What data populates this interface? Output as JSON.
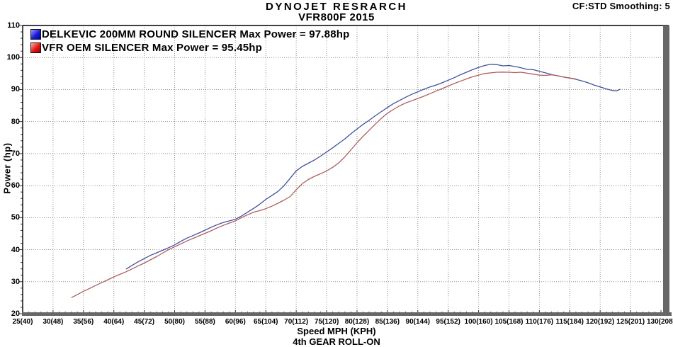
{
  "header": {
    "title": "DYNOJET RESRARCH",
    "subtitle": "VFR800F 2015",
    "smoothing_info": "CF:STD Smoothing: 5"
  },
  "chart_data": {
    "type": "line",
    "title": "DYNOJET RESRARCH",
    "subtitle": "VFR800F 2015",
    "xlabel": "Speed MPH (KPH)",
    "xlabel_secondary": "4th GEAR ROLL-ON",
    "ylabel": "Power (hp)",
    "xlim": [
      25,
      130
    ],
    "ylim": [
      20,
      110
    ],
    "grid": "dotted",
    "grid_color": "#8f8f8f",
    "axis_color": "#000000",
    "axis_shadow_color": "#676767",
    "legend_position": "top-left",
    "x_ticks": [
      {
        "v": 25,
        "label": "25(40)"
      },
      {
        "v": 30,
        "label": "30(48)"
      },
      {
        "v": 35,
        "label": "35(56)"
      },
      {
        "v": 40,
        "label": "40(64)"
      },
      {
        "v": 45,
        "label": "45(72)"
      },
      {
        "v": 50,
        "label": "50(80)"
      },
      {
        "v": 55,
        "label": "55(88)"
      },
      {
        "v": 60,
        "label": "60(96)"
      },
      {
        "v": 65,
        "label": "65(104)"
      },
      {
        "v": 70,
        "label": "70(112)"
      },
      {
        "v": 75,
        "label": "75(120)"
      },
      {
        "v": 80,
        "label": "80(128)"
      },
      {
        "v": 85,
        "label": "85(136)"
      },
      {
        "v": 90,
        "label": "90(144)"
      },
      {
        "v": 95,
        "label": "95(152)"
      },
      {
        "v": 100,
        "label": "100(160)"
      },
      {
        "v": 105,
        "label": "105(168)"
      },
      {
        "v": 110,
        "label": "110(176)"
      },
      {
        "v": 115,
        "label": "115(184)"
      },
      {
        "v": 120,
        "label": "120(192)"
      },
      {
        "v": 125,
        "label": "125(201)"
      },
      {
        "v": 130,
        "label": "130(208)"
      }
    ],
    "y_ticks": [
      20,
      30,
      40,
      50,
      60,
      70,
      80,
      90,
      100,
      110
    ],
    "series": [
      {
        "name": "DELKEVIC 200MM ROUND SILENCER",
        "legend_label": "DELKEVIC 200MM ROUND SILENCER Max Power = 97.88hp",
        "max_power_hp": 97.88,
        "line_color": "#41519e",
        "swatch_gradient": [
          "#9a9aff",
          "#1a1ad8",
          "#0000a0"
        ],
        "points": [
          [
            42,
            33.9
          ],
          [
            43,
            35.1
          ],
          [
            44,
            36.2
          ],
          [
            45,
            37.2
          ],
          [
            46,
            38.2
          ],
          [
            47,
            39.0
          ],
          [
            48,
            39.8
          ],
          [
            49,
            40.6
          ],
          [
            50,
            41.5
          ],
          [
            51,
            42.6
          ],
          [
            52,
            43.6
          ],
          [
            53,
            44.4
          ],
          [
            54,
            45.2
          ],
          [
            55,
            46.1
          ],
          [
            56,
            47.0
          ],
          [
            57,
            47.8
          ],
          [
            58,
            48.5
          ],
          [
            59,
            49.0
          ],
          [
            60,
            49.5
          ],
          [
            61,
            50.5
          ],
          [
            62,
            51.7
          ],
          [
            63,
            52.9
          ],
          [
            64,
            54.2
          ],
          [
            65,
            55.7
          ],
          [
            66,
            56.9
          ],
          [
            67,
            58.2
          ],
          [
            68,
            60.0
          ],
          [
            69,
            62.3
          ],
          [
            70,
            64.6
          ],
          [
            71,
            66.0
          ],
          [
            72,
            67.0
          ],
          [
            73,
            68.0
          ],
          [
            74,
            69.2
          ],
          [
            75,
            70.5
          ],
          [
            76,
            71.8
          ],
          [
            77,
            73.2
          ],
          [
            78,
            74.6
          ],
          [
            79,
            76.2
          ],
          [
            80,
            77.7
          ],
          [
            81,
            79.1
          ],
          [
            82,
            80.4
          ],
          [
            83,
            81.8
          ],
          [
            84,
            83.1
          ],
          [
            85,
            84.4
          ],
          [
            86,
            85.6
          ],
          [
            87,
            86.6
          ],
          [
            88,
            87.6
          ],
          [
            89,
            88.5
          ],
          [
            90,
            89.3
          ],
          [
            91,
            90.1
          ],
          [
            92,
            90.8
          ],
          [
            93,
            91.4
          ],
          [
            94,
            92.1
          ],
          [
            95,
            92.9
          ],
          [
            96,
            93.7
          ],
          [
            97,
            94.6
          ],
          [
            98,
            95.4
          ],
          [
            99,
            96.2
          ],
          [
            100,
            96.9
          ],
          [
            101,
            97.5
          ],
          [
            102,
            97.88
          ],
          [
            103,
            97.8
          ],
          [
            104,
            97.4
          ],
          [
            105,
            97.5
          ],
          [
            106,
            97.2
          ],
          [
            107,
            96.8
          ],
          [
            108,
            96.3
          ],
          [
            109,
            96.2
          ],
          [
            110,
            95.7
          ],
          [
            111,
            95.2
          ],
          [
            112,
            94.7
          ],
          [
            113,
            94.3
          ],
          [
            114,
            93.9
          ],
          [
            115,
            93.6
          ],
          [
            116,
            93.2
          ],
          [
            117,
            92.7
          ],
          [
            118,
            92.1
          ],
          [
            119,
            91.4
          ],
          [
            120,
            90.8
          ],
          [
            121,
            90.2
          ],
          [
            122,
            89.7
          ],
          [
            122.7,
            89.6
          ],
          [
            123.3,
            90.1
          ]
        ]
      },
      {
        "name": "VFR OEM SILENCER",
        "legend_label": "VFR OEM SILENCER Max Power = 95.45hp",
        "max_power_hp": 95.45,
        "line_color": "#b05c5c",
        "swatch_gradient": [
          "#ffb0a0",
          "#e01818",
          "#9c0000"
        ],
        "points": [
          [
            33,
            25.0
          ],
          [
            34,
            26.0
          ],
          [
            35,
            27.0
          ],
          [
            36,
            27.9
          ],
          [
            37,
            28.8
          ],
          [
            38,
            29.7
          ],
          [
            39,
            30.6
          ],
          [
            40,
            31.5
          ],
          [
            41,
            32.3
          ],
          [
            42,
            33.1
          ],
          [
            43,
            34.0
          ],
          [
            44,
            34.9
          ],
          [
            45,
            35.8
          ],
          [
            46,
            36.8
          ],
          [
            47,
            37.8
          ],
          [
            48,
            38.9
          ],
          [
            49,
            40.0
          ],
          [
            50,
            40.9
          ],
          [
            51,
            41.8
          ],
          [
            52,
            42.7
          ],
          [
            53,
            43.5
          ],
          [
            54,
            44.3
          ],
          [
            55,
            45.1
          ],
          [
            56,
            45.9
          ],
          [
            57,
            46.8
          ],
          [
            58,
            47.6
          ],
          [
            59,
            48.3
          ],
          [
            60,
            49.0
          ],
          [
            61,
            50.0
          ],
          [
            62,
            50.9
          ],
          [
            63,
            51.7
          ],
          [
            64,
            52.2
          ],
          [
            65,
            52.8
          ],
          [
            66,
            53.6
          ],
          [
            67,
            54.5
          ],
          [
            68,
            55.5
          ],
          [
            69,
            56.6
          ],
          [
            70,
            58.7
          ],
          [
            71,
            60.6
          ],
          [
            72,
            61.9
          ],
          [
            73,
            62.9
          ],
          [
            74,
            63.7
          ],
          [
            75,
            64.6
          ],
          [
            76,
            65.7
          ],
          [
            77,
            67.1
          ],
          [
            78,
            69.0
          ],
          [
            79,
            71.2
          ],
          [
            80,
            73.4
          ],
          [
            81,
            75.4
          ],
          [
            82,
            77.3
          ],
          [
            83,
            79.2
          ],
          [
            84,
            81.0
          ],
          [
            85,
            82.6
          ],
          [
            86,
            83.8
          ],
          [
            87,
            84.9
          ],
          [
            88,
            85.8
          ],
          [
            89,
            86.5
          ],
          [
            90,
            87.2
          ],
          [
            91,
            87.9
          ],
          [
            92,
            88.7
          ],
          [
            93,
            89.5
          ],
          [
            94,
            90.3
          ],
          [
            95,
            91.1
          ],
          [
            96,
            91.9
          ],
          [
            97,
            92.6
          ],
          [
            98,
            93.3
          ],
          [
            99,
            94.0
          ],
          [
            100,
            94.5
          ],
          [
            101,
            95.0
          ],
          [
            102,
            95.2
          ],
          [
            103,
            95.4
          ],
          [
            104,
            95.45
          ],
          [
            105,
            95.4
          ],
          [
            106,
            95.3
          ],
          [
            107,
            95.4
          ],
          [
            108,
            95.1
          ],
          [
            109,
            94.8
          ],
          [
            110,
            94.5
          ],
          [
            111,
            94.4
          ],
          [
            112,
            94.6
          ],
          [
            113,
            94.3
          ],
          [
            114,
            93.9
          ],
          [
            115,
            93.6
          ],
          [
            116,
            93.3
          ]
        ]
      }
    ]
  }
}
